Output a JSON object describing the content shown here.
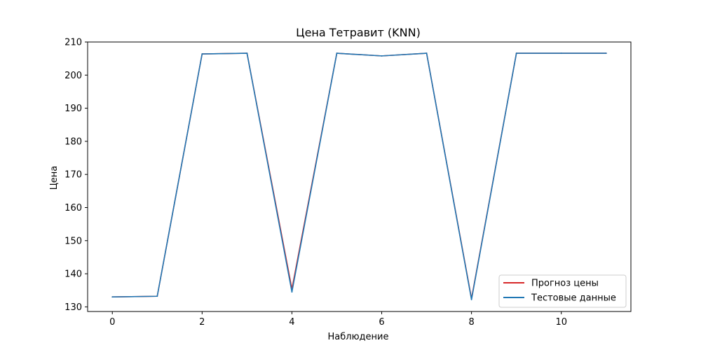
{
  "chart_data": {
    "type": "line",
    "title": "Цена Тетравит (KNN)",
    "xlabel": "Наблюдение",
    "ylabel": "Цена",
    "xlim": [
      -0.55,
      11.55
    ],
    "ylim": [
      128.6,
      210
    ],
    "x_ticks": [
      0,
      2,
      4,
      6,
      8,
      10
    ],
    "y_ticks": [
      130,
      140,
      150,
      160,
      170,
      180,
      190,
      200,
      210
    ],
    "grid": false,
    "legend_position": "lower right",
    "x": [
      0,
      1,
      2,
      3,
      4,
      5,
      6,
      7,
      8,
      9,
      10,
      11
    ],
    "series": [
      {
        "name": "Прогноз цены",
        "color": "#d62728",
        "values": [
          133.0,
          133.2,
          206.4,
          206.6,
          135.4,
          206.6,
          205.8,
          206.6,
          132.5,
          206.6,
          206.6,
          206.6
        ]
      },
      {
        "name": "Тестовые данные",
        "color": "#1f77b4",
        "values": [
          133.0,
          133.2,
          206.4,
          206.6,
          134.5,
          206.6,
          205.8,
          206.6,
          132.2,
          206.6,
          206.6,
          206.6
        ]
      }
    ]
  }
}
